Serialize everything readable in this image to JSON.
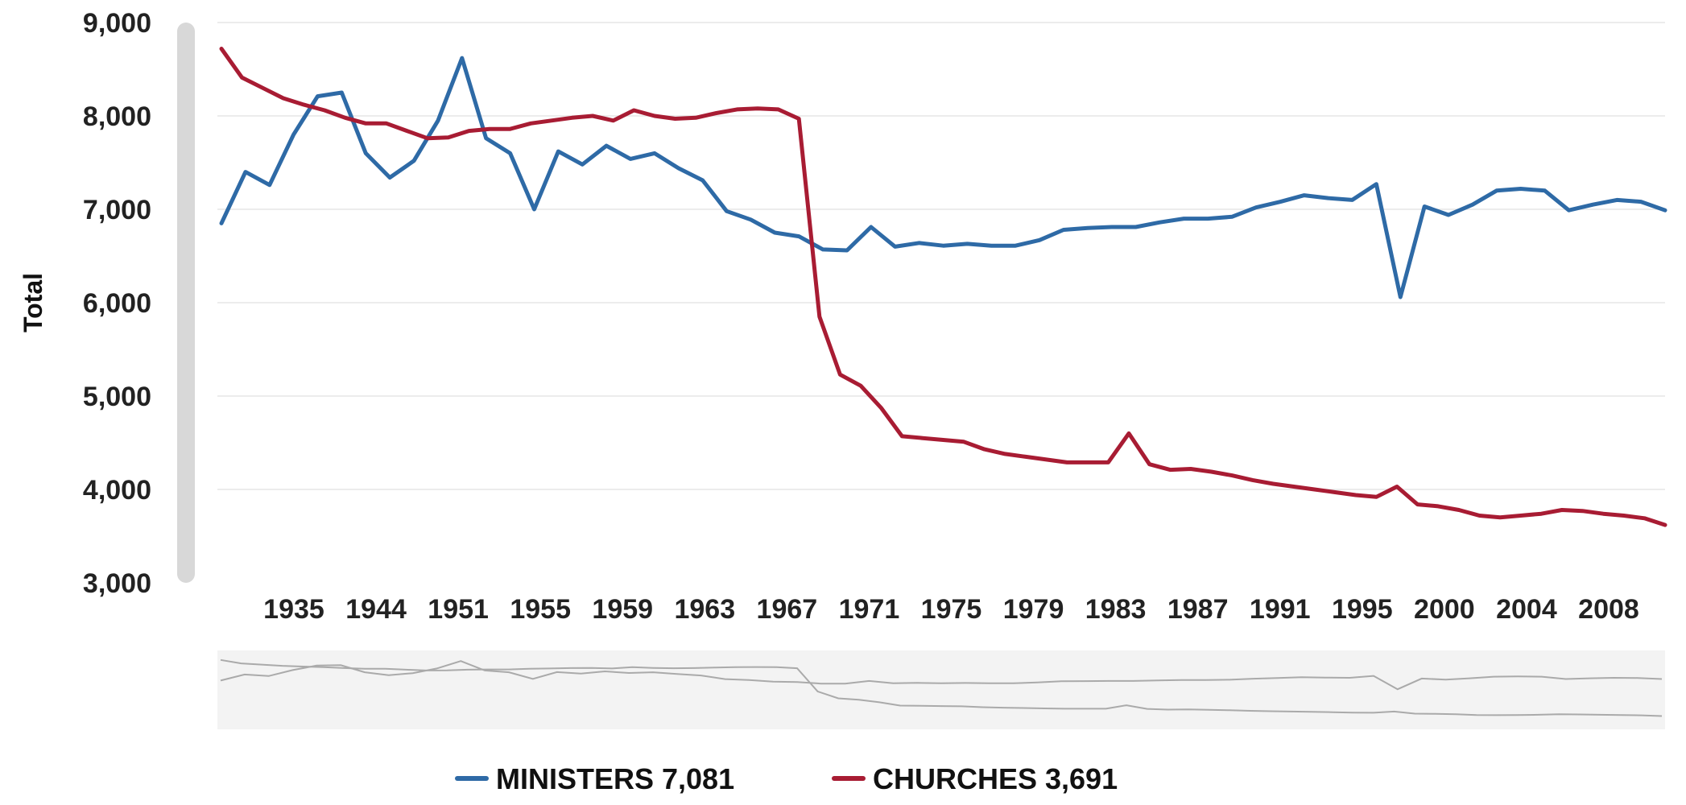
{
  "chart_data": {
    "type": "line",
    "title": "",
    "ylabel": "Total",
    "xlabel": "",
    "ylim": [
      3000,
      9000
    ],
    "yticks": [
      "3,000",
      "4,000",
      "5,000",
      "6,000",
      "7,000",
      "8,000",
      "9,000"
    ],
    "ytick_values": [
      3000,
      4000,
      5000,
      6000,
      7000,
      8000,
      9000
    ],
    "xticks": [
      "1935",
      "1944",
      "1951",
      "1955",
      "1959",
      "1963",
      "1967",
      "1971",
      "1975",
      "1979",
      "1983",
      "1987",
      "1991",
      "1995",
      "2000",
      "2004",
      "2008"
    ],
    "grid": true,
    "legend_placement": "bottom",
    "navigator": true,
    "colors": {
      "ministers": "#2e6aa6",
      "churches": "#a81c33",
      "navigator_line": "#aaaaaa",
      "navigator_bg": "#f3f3f3",
      "scrollbar": "#d8d8d8"
    },
    "series": [
      {
        "name": "MINISTERS",
        "legend_label": "MINISTERS 7,081",
        "values": [
          6850,
          7400,
          7260,
          7800,
          8210,
          8250,
          7600,
          7340,
          7520,
          7950,
          8620,
          7760,
          7600,
          7000,
          7620,
          7480,
          7680,
          7540,
          7600,
          7440,
          7310,
          6980,
          6890,
          6750,
          6710,
          6570,
          6560,
          6810,
          6600,
          6640,
          6610,
          6630,
          6610,
          6610,
          6670,
          6780,
          6800,
          6810,
          6810,
          6860,
          6900,
          6900,
          6920,
          7020,
          7080,
          7150,
          7120,
          7100,
          7270,
          6060,
          7030,
          6940,
          7050,
          7200,
          7220,
          7200,
          6990,
          7050,
          7100,
          7081,
          6990
        ]
      },
      {
        "name": "CHURCHES",
        "legend_label": "CHURCHES 3,691",
        "values": [
          8720,
          8410,
          8300,
          8190,
          8120,
          8060,
          7980,
          7920,
          7920,
          7840,
          7760,
          7770,
          7840,
          7860,
          7860,
          7920,
          7950,
          7980,
          8000,
          7950,
          8060,
          8000,
          7970,
          7980,
          8030,
          8070,
          8080,
          8070,
          7970,
          5850,
          5230,
          5110,
          4870,
          4570,
          4550,
          4530,
          4510,
          4430,
          4380,
          4350,
          4320,
          4290,
          4290,
          4290,
          4600,
          4270,
          4210,
          4220,
          4190,
          4150,
          4100,
          4060,
          4030,
          4000,
          3970,
          3940,
          3920,
          4030,
          3840,
          3820,
          3780,
          3720,
          3700,
          3720,
          3740,
          3780,
          3770,
          3740,
          3720,
          3691,
          3620
        ]
      }
    ]
  }
}
